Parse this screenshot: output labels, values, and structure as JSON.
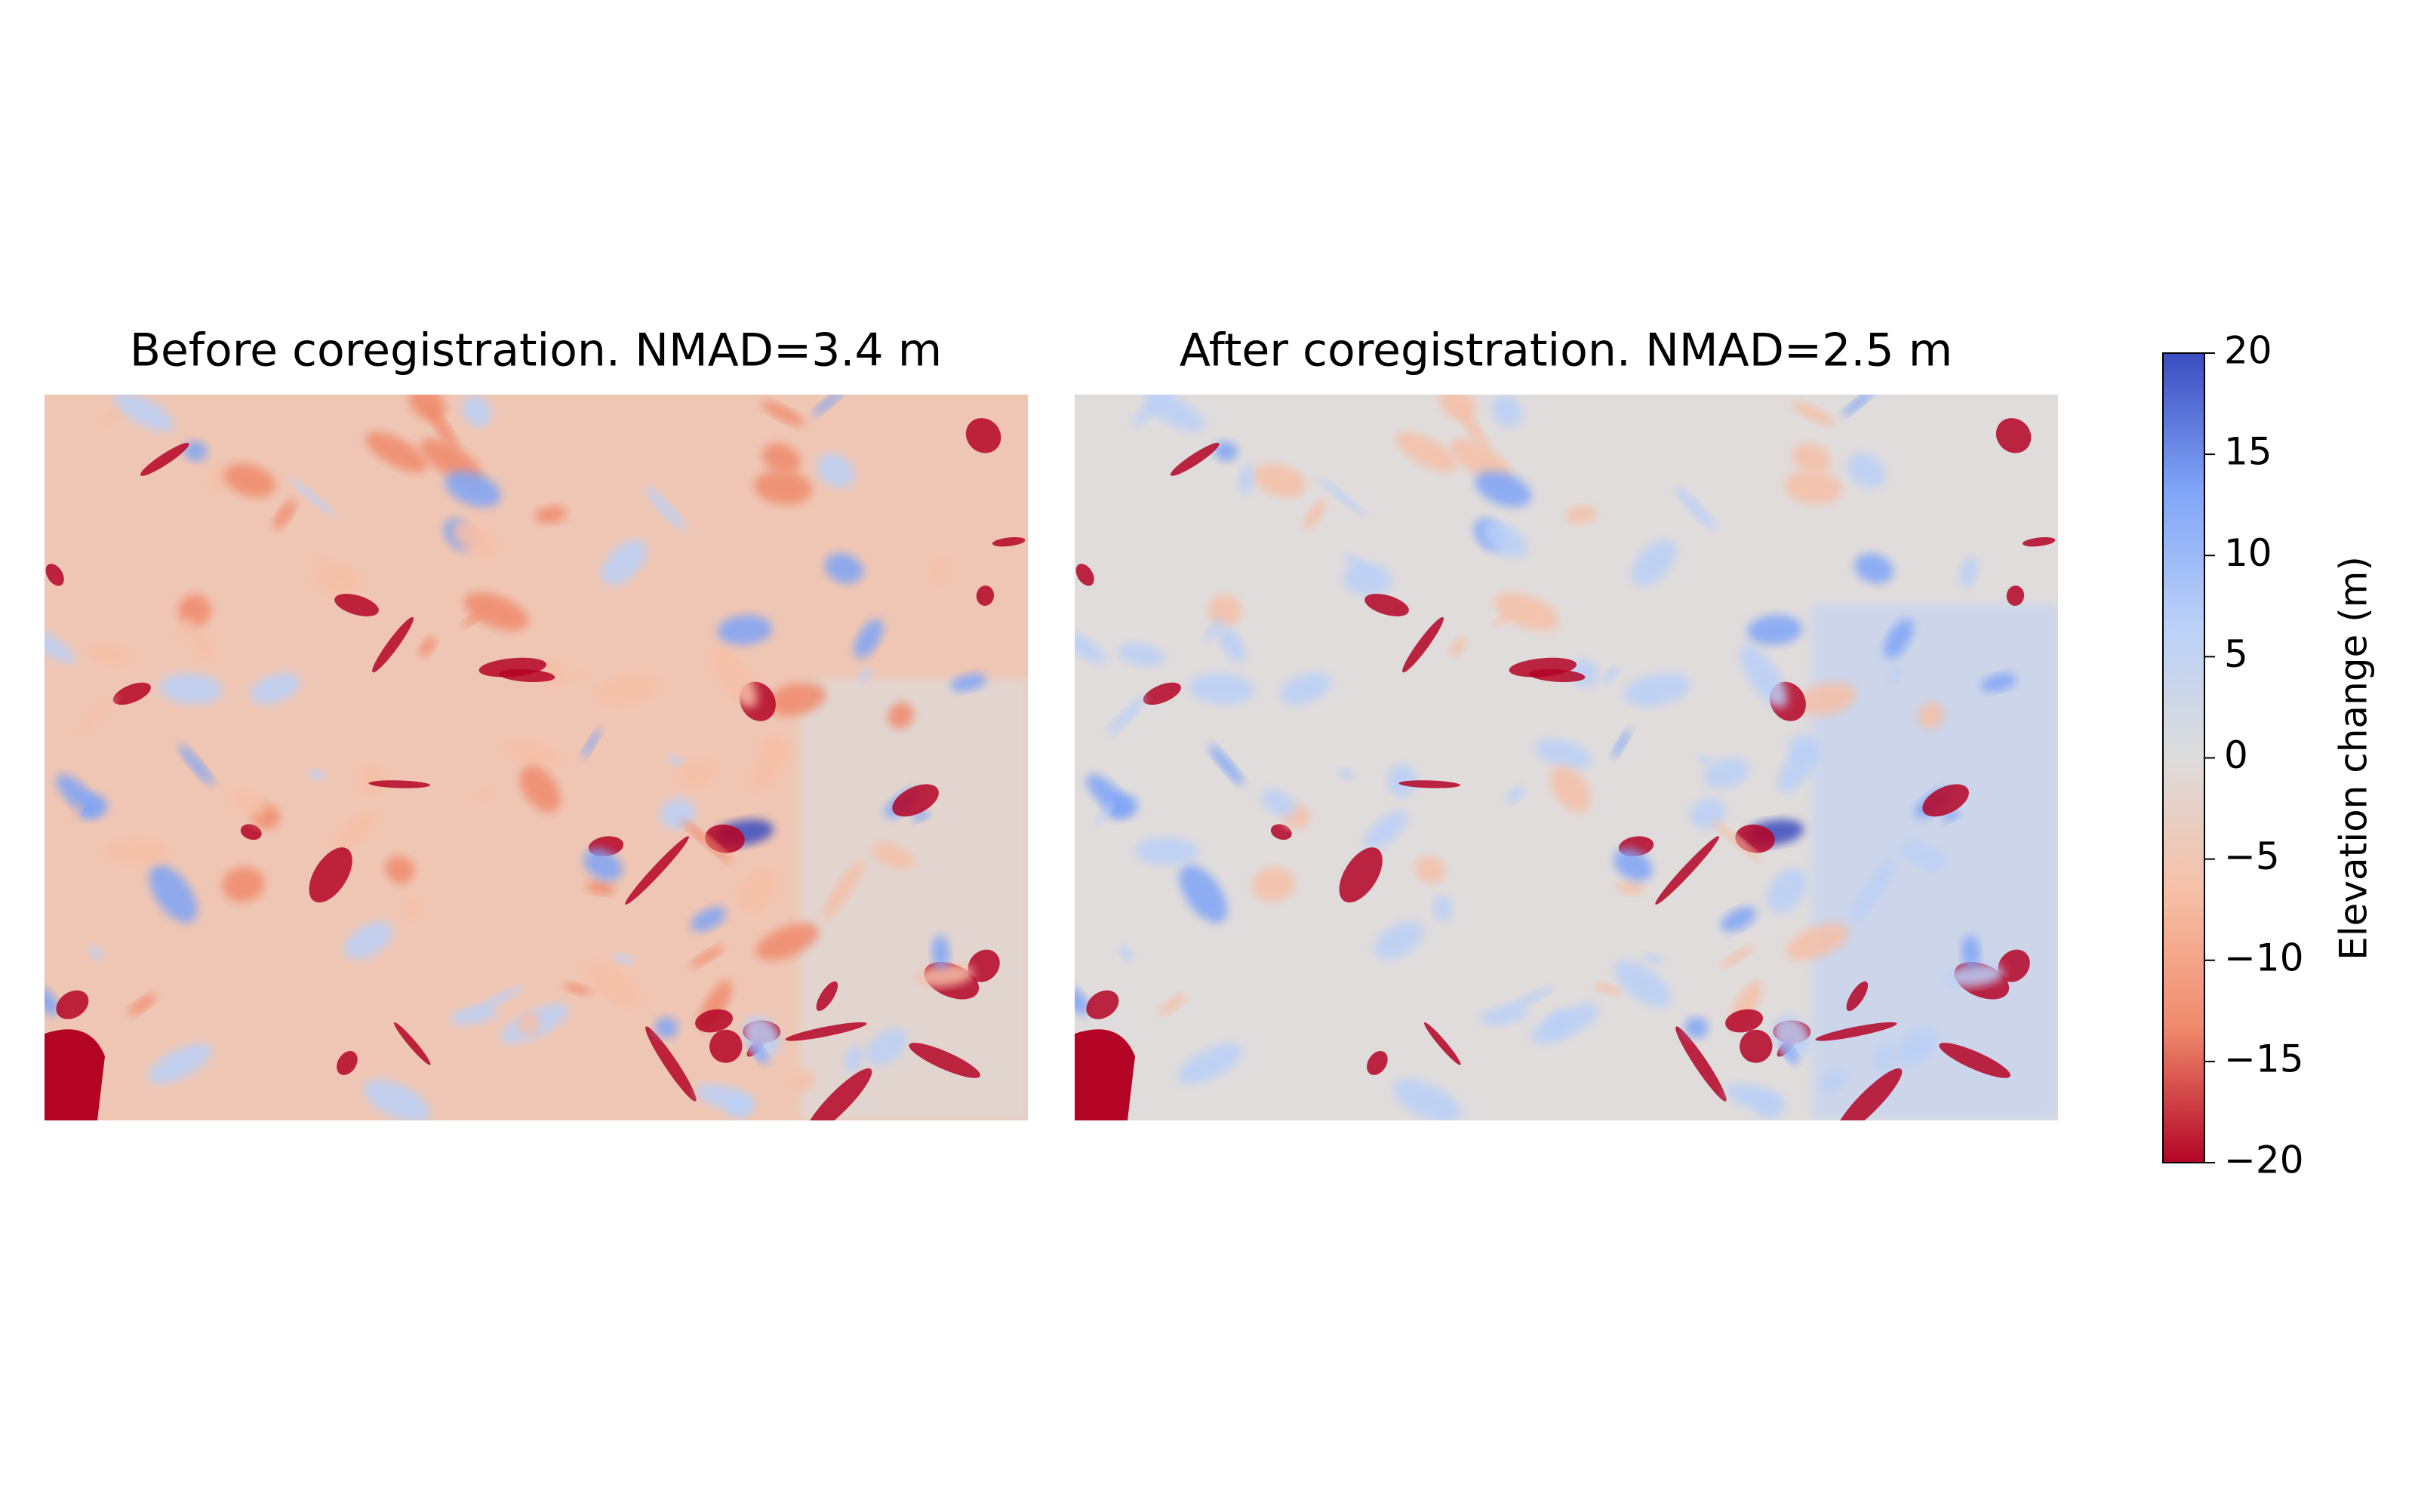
{
  "chart_data": {
    "type": "image",
    "panels": [
      {
        "title": "Before coregistration. NMAD=3.4 m"
      },
      {
        "title": "After coregistration. NMAD=2.5 m"
      }
    ],
    "colorbar": {
      "label": "Elevation change (m)",
      "clim": [
        -20,
        20
      ],
      "ticks": [
        {
          "value": -20,
          "label": "−20"
        },
        {
          "value": -15,
          "label": "−15"
        },
        {
          "value": -10,
          "label": "−10"
        },
        {
          "value": -5,
          "label": "−5"
        },
        0,
        5,
        10,
        15,
        20
      ],
      "colors": [
        "#b40426",
        "#f08a6c",
        "#f6bfa6",
        "#dddcdc",
        "#bad0f8",
        "#7fa4f7",
        "#3b4cc0"
      ]
    }
  }
}
